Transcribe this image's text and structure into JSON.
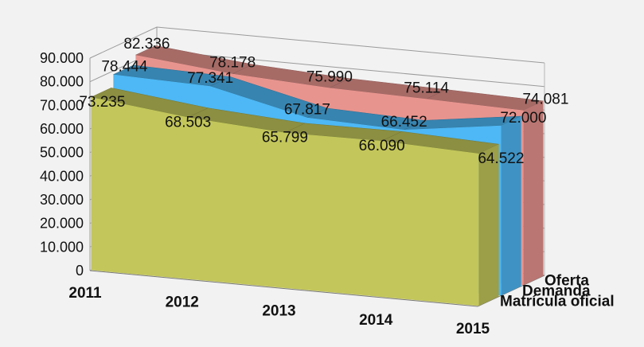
{
  "chart_data": {
    "type": "area",
    "subtype": "3d-area",
    "categories": [
      "2011",
      "2012",
      "2013",
      "2014",
      "2015"
    ],
    "series": [
      {
        "name": "Matrícula oficial",
        "values": [
          73.235,
          68.503,
          65.799,
          66.09,
          64.522
        ],
        "labels": [
          "73.235",
          "68.503",
          "65.799",
          "66.090",
          "64.522"
        ],
        "color": "#c3c65a"
      },
      {
        "name": "Demanda",
        "values": [
          78.444,
          77.341,
          67.817,
          66.452,
          72.0
        ],
        "labels": [
          "78.444",
          "77.341",
          "67.817",
          "66.452",
          "72.000"
        ],
        "color": "#4db8f5"
      },
      {
        "name": "Oferta",
        "values": [
          82.336,
          78.178,
          75.99,
          75.114,
          74.081
        ],
        "labels": [
          "82.336",
          "78.178",
          "75.990",
          "75.114",
          "74.081"
        ],
        "color": "#e8948e"
      }
    ],
    "y_ticks": [
      "0",
      "10.000",
      "20.000",
      "30.000",
      "40.000",
      "50.000",
      "60.000",
      "70.000",
      "80.000",
      "90.000"
    ],
    "ylim": [
      0,
      90
    ],
    "grid": true,
    "title": "",
    "xlabel": "",
    "ylabel": ""
  }
}
